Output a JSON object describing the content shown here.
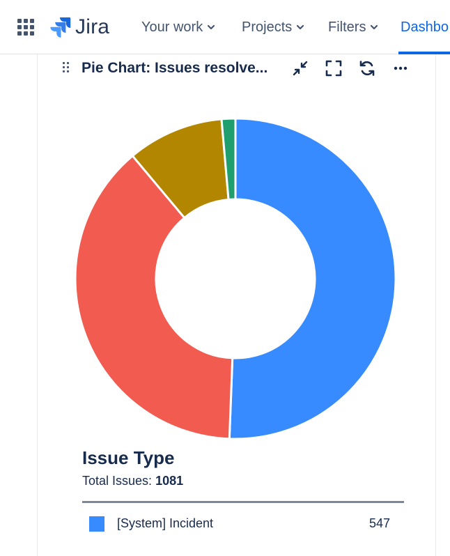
{
  "app": {
    "title": "Jira"
  },
  "nav": {
    "items": [
      {
        "label": "Your work"
      },
      {
        "label": "Projects"
      },
      {
        "label": "Filters"
      },
      {
        "label": "Dashbo"
      }
    ]
  },
  "gadget": {
    "title": "Pie Chart: Issues resolve...",
    "tools": [
      "minimize-icon",
      "fullscreen-icon",
      "refresh-icon",
      "more-icon"
    ]
  },
  "colors": {
    "accent": "#0c66e4",
    "incident": "#388bff",
    "red": "#f15b50",
    "gold": "#b38600",
    "green": "#1f9e6e"
  },
  "chart_data": {
    "type": "pie",
    "donut": true,
    "slices": [
      {
        "label": "[System] Incident",
        "value": 547,
        "color": "#388bff"
      },
      {
        "label": "",
        "value": 414,
        "color": "#f15b50"
      },
      {
        "label": "",
        "value": 105,
        "color": "#b38600"
      },
      {
        "label": "",
        "value": 15,
        "color": "#1f9e6e"
      }
    ]
  },
  "legend": {
    "title": "Issue Type",
    "total_label": "Total Issues:",
    "total_value": "1081",
    "rows": [
      {
        "label": "[System] Incident",
        "count": "547",
        "color": "#388bff"
      }
    ]
  }
}
